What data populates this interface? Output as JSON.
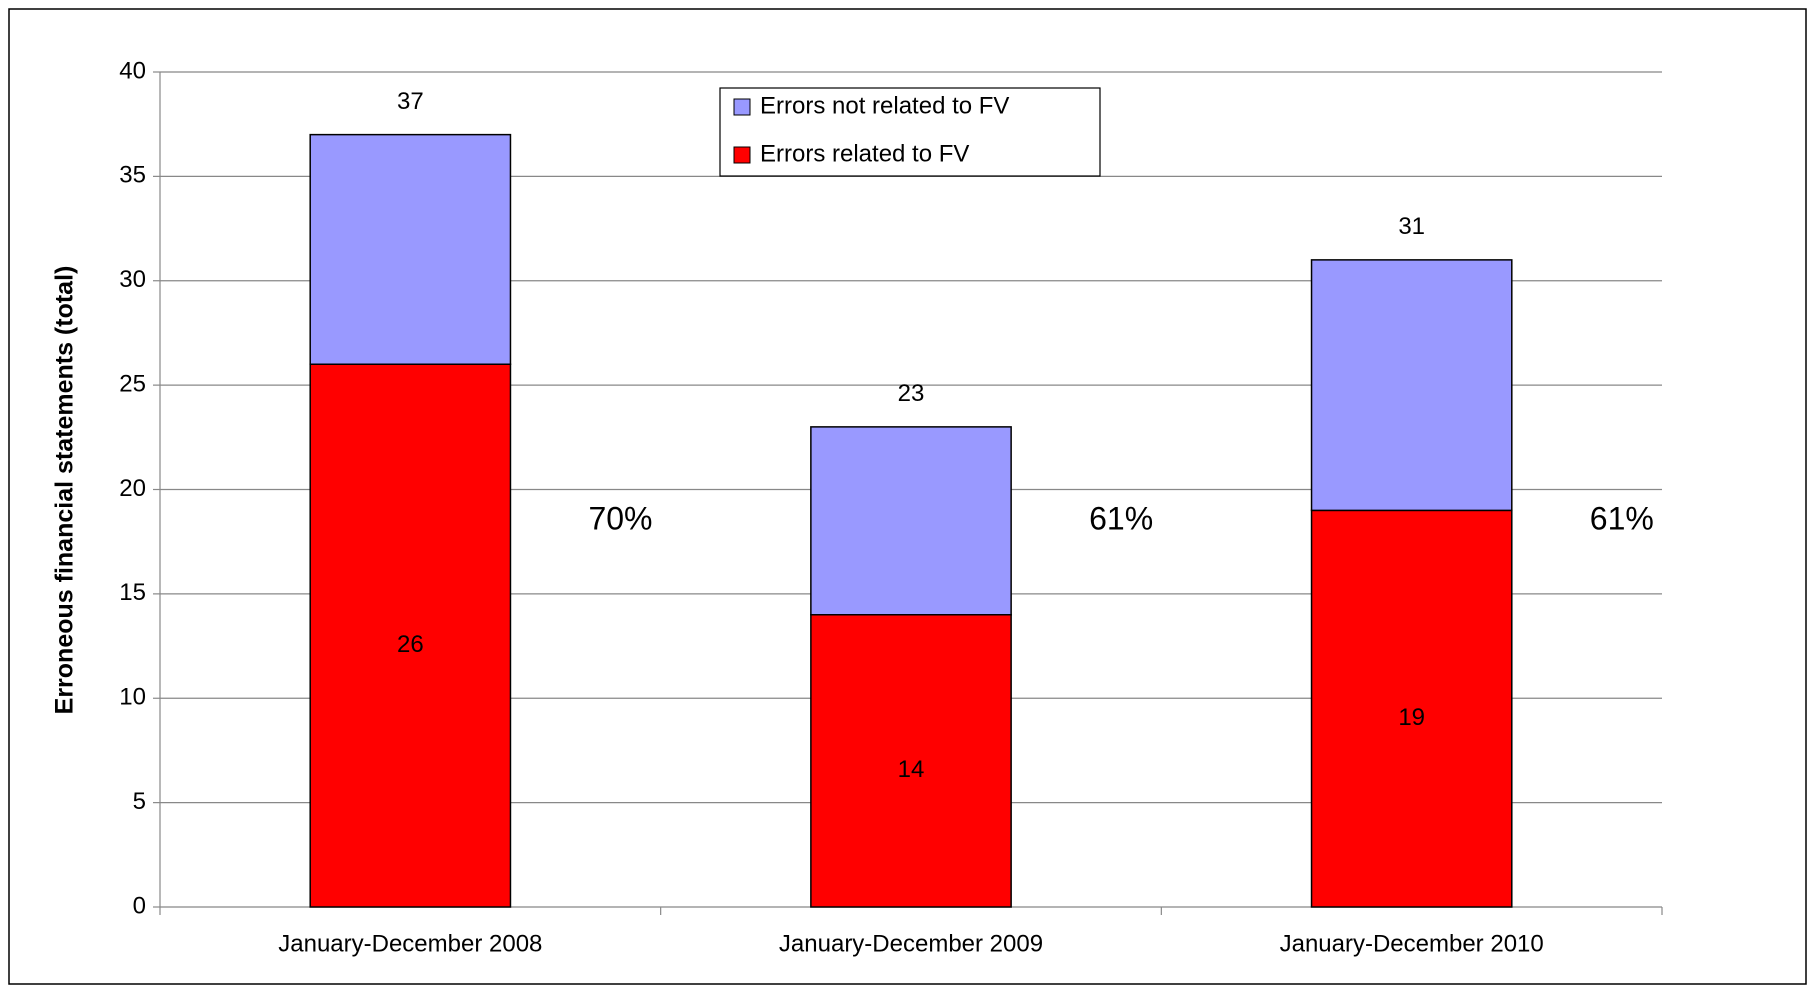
{
  "chart_data": {
    "type": "stacked_bar",
    "y_label": "Erroneous financial statements (total)",
    "categories": [
      "January-December 2008",
      "January-December 2009",
      "January-December 2010"
    ],
    "series": [
      {
        "name": "Errors related to FV",
        "color": "#ff0000",
        "values": [
          26,
          14,
          19
        ]
      },
      {
        "name": "Errors not related to FV",
        "color": "#9999ff",
        "values": [
          11,
          9,
          12
        ]
      }
    ],
    "totals": [
      37,
      23,
      31
    ],
    "percent_labels": [
      "70%",
      "61%",
      "61%"
    ],
    "ylim": [
      0,
      40
    ],
    "yticks": [
      0,
      5,
      10,
      15,
      20,
      25,
      30,
      35,
      40
    ],
    "grid": true
  }
}
